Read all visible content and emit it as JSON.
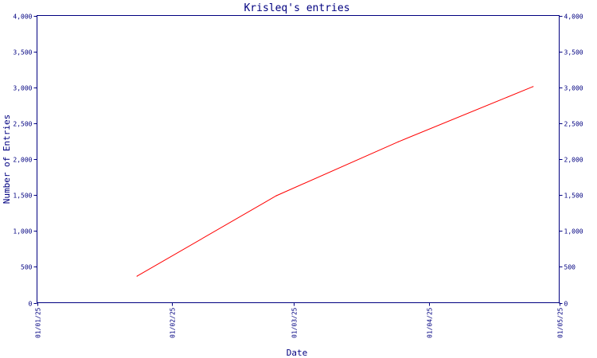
{
  "chart_data": {
    "type": "line",
    "title": "Krisleq's entries",
    "xlabel": "Date",
    "ylabel": "Number of Entries",
    "x_ticks": [
      "01/01/25",
      "01/02/25",
      "01/03/25",
      "01/04/25",
      "01/05/25"
    ],
    "x_tick_days": [
      0,
      31,
      59,
      90,
      120
    ],
    "xlim_days": [
      0,
      120
    ],
    "y_ticks": [
      0,
      500,
      1000,
      1500,
      2000,
      2500,
      3000,
      3500,
      4000
    ],
    "y_tick_labels": [
      "0",
      "500",
      "1,000",
      "1,500",
      "2,000",
      "2,500",
      "3,000",
      "3,500",
      "4,000"
    ],
    "ylim": [
      0,
      4000
    ],
    "grid": false,
    "series": [
      {
        "color": "#ff0000",
        "points": [
          {
            "x": "2025-01-24",
            "y": 370
          },
          {
            "x": "2025-02-25",
            "y": 1490
          },
          {
            "x": "2025-03-25",
            "y": 2240
          },
          {
            "x": "2025-04-25",
            "y": 3010
          }
        ]
      }
    ],
    "colors": {
      "axis": "#000080",
      "text": "#000080",
      "title": "#000080"
    }
  }
}
